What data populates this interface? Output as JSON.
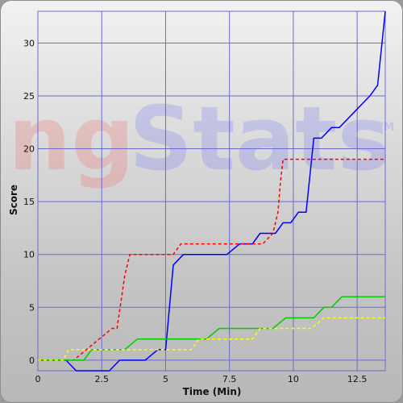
{
  "chart_data": {
    "type": "line",
    "title": "",
    "xlabel": "Time (Min)",
    "ylabel": "Score",
    "xlim": [
      0,
      13.6
    ],
    "ylim": [
      -1,
      33
    ],
    "x_ticks": [
      0,
      2.5,
      5,
      7.5,
      10,
      12.5
    ],
    "x_tick_labels": [
      "0",
      "2.5",
      "5",
      "7.5",
      "10",
      "12.5"
    ],
    "y_ticks": [
      0,
      5,
      10,
      15,
      20,
      25,
      30
    ],
    "y_tick_labels": [
      "0",
      "5",
      "10",
      "15",
      "20",
      "25",
      "30"
    ],
    "grid": true,
    "legend": "none",
    "watermark": {
      "prefix": "ng",
      "main": "Stats",
      "tm": "TM"
    },
    "series": [
      {
        "color": "#0000ff",
        "dashed": false,
        "points": [
          [
            0,
            0
          ],
          [
            1.1,
            0
          ],
          [
            1.5,
            -1
          ],
          [
            2.8,
            -1
          ],
          [
            3.2,
            0
          ],
          [
            4.2,
            0
          ],
          [
            4.7,
            1
          ],
          [
            5.0,
            1
          ],
          [
            5.3,
            9
          ],
          [
            5.7,
            10
          ],
          [
            7.4,
            10
          ],
          [
            7.9,
            11
          ],
          [
            8.4,
            11
          ],
          [
            8.7,
            12
          ],
          [
            9.3,
            12
          ],
          [
            9.6,
            13
          ],
          [
            9.9,
            13
          ],
          [
            10.2,
            14
          ],
          [
            10.5,
            14
          ],
          [
            10.8,
            21
          ],
          [
            11.1,
            21
          ],
          [
            11.5,
            22
          ],
          [
            11.8,
            22
          ],
          [
            12.2,
            23
          ],
          [
            13.0,
            25
          ],
          [
            13.3,
            26
          ],
          [
            13.6,
            33
          ]
        ]
      },
      {
        "color": "#ff0000",
        "dashed": true,
        "points": [
          [
            0,
            0
          ],
          [
            1.4,
            0
          ],
          [
            1.9,
            1
          ],
          [
            2.4,
            2
          ],
          [
            2.9,
            3
          ],
          [
            3.1,
            3
          ],
          [
            3.4,
            8
          ],
          [
            3.6,
            10
          ],
          [
            5.1,
            10
          ],
          [
            5.3,
            10
          ],
          [
            5.6,
            11
          ],
          [
            7.0,
            11
          ],
          [
            7.7,
            11
          ],
          [
            8.1,
            11
          ],
          [
            8.8,
            11
          ],
          [
            9.2,
            12
          ],
          [
            9.4,
            14
          ],
          [
            9.5,
            17
          ],
          [
            9.6,
            19
          ],
          [
            13.6,
            19
          ]
        ]
      },
      {
        "color": "#00cc00",
        "dashed": false,
        "points": [
          [
            0,
            0
          ],
          [
            1.8,
            0
          ],
          [
            2.1,
            1
          ],
          [
            3.4,
            1
          ],
          [
            3.9,
            2
          ],
          [
            6.6,
            2
          ],
          [
            7.1,
            3
          ],
          [
            8.5,
            3
          ],
          [
            9.2,
            3
          ],
          [
            9.7,
            4
          ],
          [
            10.8,
            4
          ],
          [
            11.2,
            5
          ],
          [
            11.5,
            5
          ],
          [
            11.9,
            6
          ],
          [
            13.6,
            6
          ]
        ]
      },
      {
        "color": "#ffff00",
        "dashed": true,
        "points": [
          [
            0,
            0
          ],
          [
            1.0,
            0
          ],
          [
            1.2,
            1
          ],
          [
            6.0,
            1
          ],
          [
            6.3,
            2
          ],
          [
            7.8,
            2
          ],
          [
            8.4,
            2
          ],
          [
            8.7,
            3
          ],
          [
            10.7,
            3
          ],
          [
            11.2,
            4
          ],
          [
            13.6,
            4
          ]
        ]
      }
    ]
  }
}
